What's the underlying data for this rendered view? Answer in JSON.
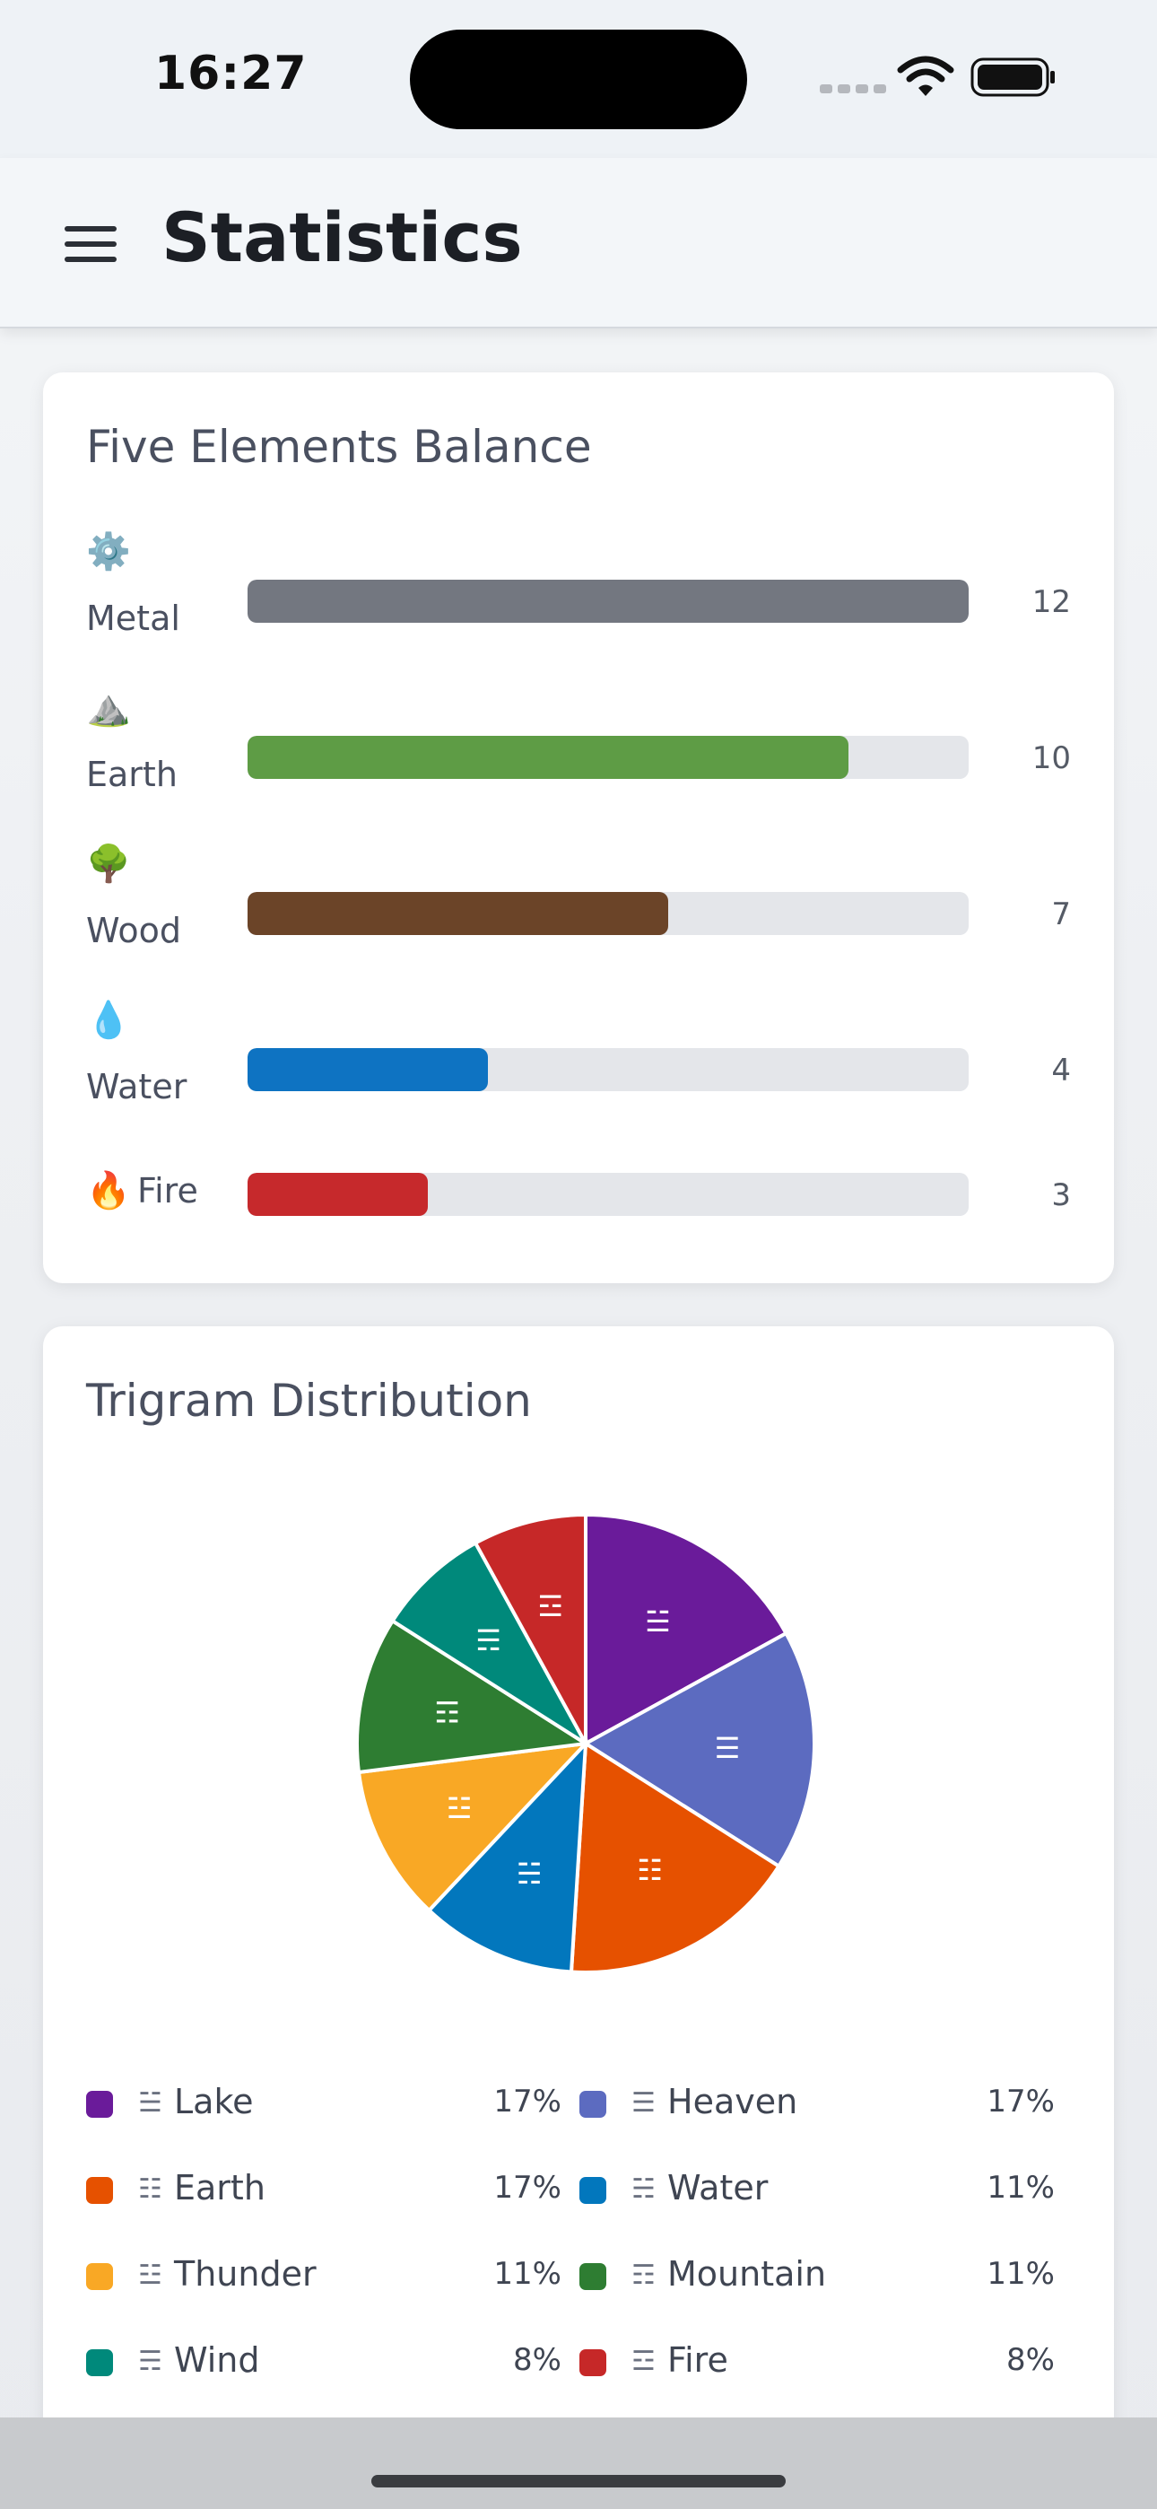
{
  "status_bar": {
    "time": "16:27"
  },
  "header": {
    "title": "Statistics"
  },
  "elements_card": {
    "title": "Five Elements Balance",
    "max": 12,
    "items": [
      {
        "emoji": "⚙️",
        "label": "Metal",
        "count": "12",
        "value": 12,
        "color": "#737780"
      },
      {
        "emoji": "⛰️",
        "label": "Earth",
        "count": "10",
        "value": 10,
        "color": "#5e9c45"
      },
      {
        "emoji": "🌳",
        "label": "Wood",
        "count": "7",
        "value": 7,
        "color": "#6b4428"
      },
      {
        "emoji": "💧",
        "label": "Water",
        "count": "4",
        "value": 4,
        "color": "#0e73c2"
      },
      {
        "emoji": "🔥",
        "label": "Fire",
        "count": "3",
        "value": 3,
        "color": "#c6292c"
      }
    ]
  },
  "trigram_card": {
    "title": "Trigram Distribution"
  },
  "chart_data": {
    "type": "pie",
    "title": "Trigram Distribution",
    "slices": [
      {
        "name": "Lake",
        "symbol": "☱",
        "value": 17,
        "label": "17%",
        "color": "#6a1b9a"
      },
      {
        "name": "Heaven",
        "symbol": "☰",
        "value": 17,
        "label": "17%",
        "color": "#5c6bc0"
      },
      {
        "name": "Earth",
        "symbol": "☷",
        "value": 17,
        "label": "17%",
        "color": "#e65100"
      },
      {
        "name": "Water",
        "symbol": "☵",
        "value": 11,
        "label": "11%",
        "color": "#0277bd"
      },
      {
        "name": "Thunder",
        "symbol": "☳",
        "value": 11,
        "label": "11%",
        "color": "#f9a825"
      },
      {
        "name": "Mountain",
        "symbol": "☶",
        "value": 11,
        "label": "11%",
        "color": "#2e7d32"
      },
      {
        "name": "Wind",
        "symbol": "☴",
        "value": 8,
        "label": "8%",
        "color": "#00897b"
      },
      {
        "name": "Fire",
        "symbol": "☲",
        "value": 8,
        "label": "8%",
        "color": "#c62828"
      }
    ],
    "legend_placement": "bottom"
  }
}
